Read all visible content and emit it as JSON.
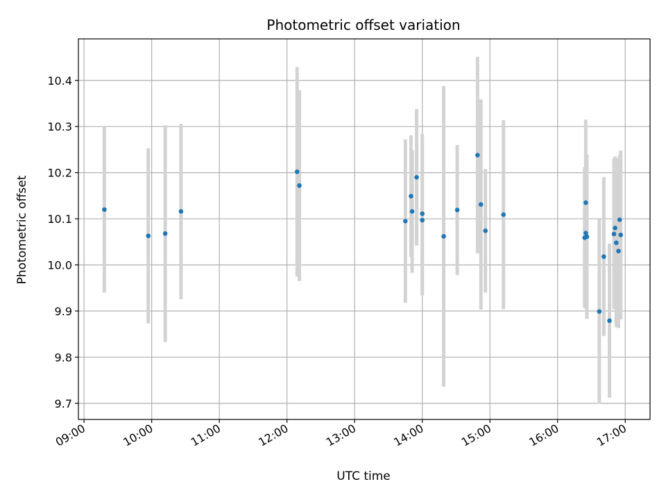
{
  "chart_data": {
    "type": "scatter",
    "title": "Photometric offset variation",
    "xlabel": "UTC time",
    "ylabel": "Photometric offset",
    "x_tick_labels": [
      "09:00",
      "10:00",
      "11:00",
      "12:00",
      "13:00",
      "14:00",
      "15:00",
      "16:00",
      "17:00"
    ],
    "y_ticks": [
      9.7,
      9.8,
      9.9,
      10.0,
      10.1,
      10.2,
      10.3,
      10.4
    ],
    "y_tick_labels": [
      "9.7",
      "9.8",
      "9.9",
      "10.0",
      "10.1",
      "10.2",
      "10.3",
      "10.4"
    ],
    "xlim": [
      "08:55",
      "17:22"
    ],
    "ylim": [
      9.665,
      10.49
    ],
    "grid": true,
    "marker_color": "#1f77b4",
    "errorbar_color": "#d3d3d3",
    "points": [
      {
        "x": "09:18",
        "y": 10.12,
        "yerr": 0.18
      },
      {
        "x": "09:57",
        "y": 10.063,
        "yerr": 0.19
      },
      {
        "x": "10:12",
        "y": 10.068,
        "yerr": 0.235
      },
      {
        "x": "10:26",
        "y": 10.116,
        "yerr": 0.19
      },
      {
        "x": "12:09",
        "y": 10.202,
        "yerr": 0.227
      },
      {
        "x": "12:11",
        "y": 10.172,
        "yerr": 0.207
      },
      {
        "x": "13:45",
        "y": 10.095,
        "yerr": 0.177
      },
      {
        "x": "13:50",
        "y": 10.149,
        "yerr": 0.132
      },
      {
        "x": "13:51",
        "y": 10.116,
        "yerr": 0.133
      },
      {
        "x": "13:55",
        "y": 10.19,
        "yerr": 0.148
      },
      {
        "x": "14:00",
        "y": 10.111,
        "yerr": 0.173
      },
      {
        "x": "14:00",
        "y": 10.097,
        "yerr": 0.163
      },
      {
        "x": "14:19",
        "y": 10.062,
        "yerr": 0.326
      },
      {
        "x": "14:31",
        "y": 10.119,
        "yerr": 0.141
      },
      {
        "x": "14:49",
        "y": 10.238,
        "yerr": 0.213
      },
      {
        "x": "14:52",
        "y": 10.131,
        "yerr": 0.228
      },
      {
        "x": "14:56",
        "y": 10.074,
        "yerr": 0.134
      },
      {
        "x": "15:12",
        "y": 10.109,
        "yerr": 0.205
      },
      {
        "x": "16:24",
        "y": 10.059,
        "yerr": 0.153
      },
      {
        "x": "16:25",
        "y": 10.069,
        "yerr": 0.162
      },
      {
        "x": "16:25",
        "y": 10.135,
        "yerr": 0.18
      },
      {
        "x": "16:26",
        "y": 10.061,
        "yerr": 0.178
      },
      {
        "x": "16:37",
        "y": 9.899,
        "yerr": 0.2
      },
      {
        "x": "16:41",
        "y": 10.018,
        "yerr": 0.172
      },
      {
        "x": "16:46",
        "y": 9.879,
        "yerr": 0.167
      },
      {
        "x": "16:50",
        "y": 10.067,
        "yerr": 0.163
      },
      {
        "x": "16:51",
        "y": 10.08,
        "yerr": 0.155
      },
      {
        "x": "16:52",
        "y": 10.048,
        "yerr": 0.183
      },
      {
        "x": "16:54",
        "y": 10.03,
        "yerr": 0.167
      },
      {
        "x": "16:55",
        "y": 10.098,
        "yerr": 0.14
      },
      {
        "x": "16:56",
        "y": 10.065,
        "yerr": 0.183
      }
    ]
  }
}
